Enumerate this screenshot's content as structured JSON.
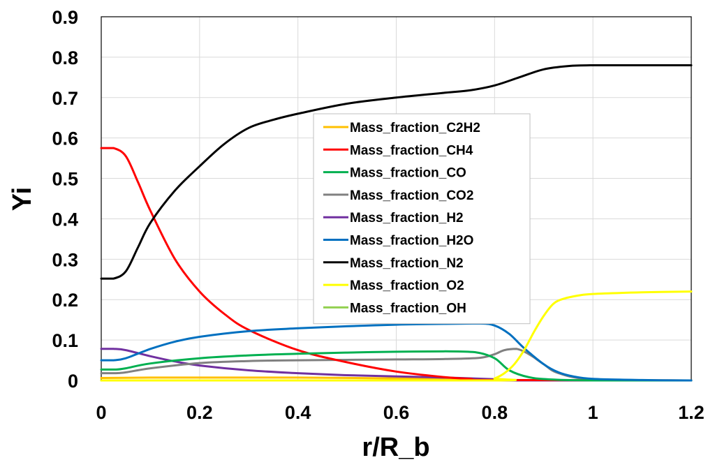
{
  "chart_data": {
    "type": "line",
    "title": "",
    "xlabel": "r/R_b",
    "ylabel": "Yi",
    "xlim": [
      0,
      1.2
    ],
    "ylim": [
      0,
      0.9
    ],
    "xticks": [
      0,
      0.2,
      0.4,
      0.6,
      0.8,
      1,
      1.2
    ],
    "yticks": [
      0,
      0.1,
      0.2,
      0.3,
      0.4,
      0.5,
      0.6,
      0.7,
      0.8,
      0.9
    ],
    "xtick_labels": [
      "0",
      "0.2",
      "0.4",
      "0.6",
      "0.8",
      "1",
      "1.2"
    ],
    "ytick_labels": [
      "0",
      "0.1",
      "0.2",
      "0.3",
      "0.4",
      "0.5",
      "0.6",
      "0.7",
      "0.8",
      "0.9"
    ],
    "grid": true,
    "legend_position": "center",
    "series": [
      {
        "name": "Mass_fraction_C2H2",
        "color": "#FFC000",
        "x": [
          0,
          0.1,
          0.2,
          0.4,
          0.6,
          0.7,
          0.75,
          0.8,
          1.2
        ],
        "y": [
          0.006,
          0.007,
          0.007,
          0.007,
          0.005,
          0.003,
          0.001,
          0.0,
          0.0
        ]
      },
      {
        "name": "Mass_fraction_CH4",
        "color": "#FF0000",
        "x": [
          0,
          0.025,
          0.05,
          0.075,
          0.1,
          0.15,
          0.2,
          0.25,
          0.3,
          0.4,
          0.5,
          0.6,
          0.7,
          0.75,
          0.8,
          1.2
        ],
        "y": [
          0.575,
          0.575,
          0.555,
          0.49,
          0.42,
          0.3,
          0.22,
          0.165,
          0.125,
          0.075,
          0.045,
          0.022,
          0.008,
          0.004,
          0.001,
          0.0
        ]
      },
      {
        "name": "Mass_fraction_CO",
        "color": "#00B050",
        "x": [
          0,
          0.03,
          0.05,
          0.1,
          0.2,
          0.3,
          0.4,
          0.5,
          0.6,
          0.7,
          0.76,
          0.8,
          0.83,
          0.87,
          0.92,
          1,
          1.2
        ],
        "y": [
          0.027,
          0.027,
          0.03,
          0.042,
          0.055,
          0.062,
          0.066,
          0.069,
          0.071,
          0.072,
          0.07,
          0.055,
          0.025,
          0.008,
          0.002,
          0.0,
          0.0
        ]
      },
      {
        "name": "Mass_fraction_CO2",
        "color": "#808080",
        "x": [
          0,
          0.03,
          0.05,
          0.1,
          0.2,
          0.3,
          0.4,
          0.5,
          0.6,
          0.7,
          0.77,
          0.8,
          0.82,
          0.845,
          0.87,
          0.9,
          0.93,
          1,
          1.2
        ],
        "y": [
          0.018,
          0.018,
          0.02,
          0.03,
          0.043,
          0.048,
          0.05,
          0.051,
          0.052,
          0.053,
          0.056,
          0.065,
          0.075,
          0.078,
          0.065,
          0.04,
          0.018,
          0.003,
          0.0
        ]
      },
      {
        "name": "Mass_fraction_H2",
        "color": "#7030A0",
        "x": [
          0,
          0.025,
          0.05,
          0.1,
          0.15,
          0.2,
          0.3,
          0.4,
          0.5,
          0.6,
          0.7,
          0.8,
          0.85,
          1.2
        ],
        "y": [
          0.078,
          0.078,
          0.075,
          0.06,
          0.047,
          0.037,
          0.025,
          0.018,
          0.013,
          0.01,
          0.007,
          0.003,
          0.0,
          0.0
        ]
      },
      {
        "name": "Mass_fraction_H2O",
        "color": "#0070C0",
        "x": [
          0,
          0.025,
          0.05,
          0.1,
          0.15,
          0.2,
          0.3,
          0.4,
          0.5,
          0.6,
          0.7,
          0.77,
          0.8,
          0.83,
          0.86,
          0.9,
          0.93,
          0.96,
          1,
          1.1,
          1.2
        ],
        "y": [
          0.05,
          0.05,
          0.055,
          0.078,
          0.096,
          0.108,
          0.122,
          0.129,
          0.134,
          0.138,
          0.14,
          0.141,
          0.136,
          0.115,
          0.08,
          0.04,
          0.02,
          0.01,
          0.004,
          0.001,
          0.0
        ]
      },
      {
        "name": "Mass_fraction_N2",
        "color": "#000000",
        "x": [
          0,
          0.025,
          0.05,
          0.075,
          0.1,
          0.15,
          0.2,
          0.25,
          0.3,
          0.35,
          0.4,
          0.5,
          0.6,
          0.7,
          0.75,
          0.8,
          0.85,
          0.9,
          0.95,
          1,
          1.1,
          1.2
        ],
        "y": [
          0.252,
          0.252,
          0.27,
          0.33,
          0.39,
          0.47,
          0.53,
          0.585,
          0.625,
          0.645,
          0.66,
          0.685,
          0.7,
          0.712,
          0.718,
          0.73,
          0.75,
          0.77,
          0.778,
          0.78,
          0.78,
          0.78
        ]
      },
      {
        "name": "Mass_fraction_O2",
        "color": "#FFFF00",
        "x": [
          0,
          0.78,
          0.8,
          0.82,
          0.84,
          0.86,
          0.88,
          0.9,
          0.92,
          0.94,
          0.97,
          1,
          1.1,
          1.2
        ],
        "y": [
          0.0,
          0.0,
          0.005,
          0.018,
          0.04,
          0.075,
          0.12,
          0.16,
          0.19,
          0.202,
          0.21,
          0.214,
          0.218,
          0.22
        ]
      },
      {
        "name": "Mass_fraction_OH",
        "color": "#92D050",
        "x": [
          0,
          0.4,
          0.8,
          1.2
        ],
        "y": [
          0.0,
          0.0,
          0.0,
          0.0
        ]
      }
    ]
  }
}
